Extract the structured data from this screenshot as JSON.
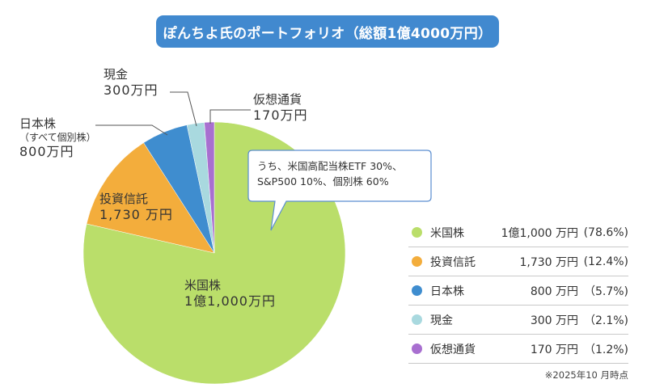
{
  "title": "ぽんちよ氏のポートフォリオ（総額1億4000万円）",
  "chart_data": {
    "type": "pie",
    "title": "ぽんちよ氏のポートフォリオ（総額1億4000万円）",
    "unit": "万円",
    "start_angle": "top",
    "direction": "clockwise",
    "slices": [
      {
        "name": "米国株",
        "value": 11000,
        "value_label": "1億1,000万円",
        "percent": 78.6,
        "color": "#bade6a"
      },
      {
        "name": "投資信託",
        "value": 1730,
        "value_label": "1,730万円",
        "percent": 12.4,
        "color": "#f3ad3c"
      },
      {
        "name": "日本株",
        "value": 800,
        "value_label": "800万円",
        "percent": 5.7,
        "color": "#3f8dcf"
      },
      {
        "name": "現金",
        "value": 300,
        "value_label": "300万円",
        "percent": 2.1,
        "color": "#a9d9df"
      },
      {
        "name": "仮想通貨",
        "value": 170,
        "value_label": "170万円",
        "percent": 1.2,
        "color": "#a86fd0"
      }
    ]
  },
  "labels": {
    "us": {
      "name": "米国株",
      "amount": "1億1,000万円"
    },
    "fund": {
      "name": "投資信託",
      "amount": "1,730 万円"
    },
    "jp": {
      "name": "日本株",
      "sub": "（すべて個別株）",
      "amount": "800万円"
    },
    "cash": {
      "name": "現金",
      "amount": "300万円"
    },
    "crypto": {
      "name": "仮想通貨",
      "amount": "170万円"
    }
  },
  "callout": {
    "line1": "うち、米国高配当株ETF 30%、",
    "line2": "S&P500 10%、個別株 60%"
  },
  "legend": [
    {
      "name": "米国株",
      "value": "1億1,000 万円",
      "percent": "(78.6%)",
      "color": "#bade6a"
    },
    {
      "name": "投資信託",
      "value": "1,730 万円",
      "percent": "(12.4%)",
      "color": "#f3ad3c"
    },
    {
      "name": "日本株",
      "value": "800 万円",
      "percent": "（5.7%)",
      "color": "#3f8dcf"
    },
    {
      "name": "現金",
      "value": "300 万円",
      "percent": "（2.1%)",
      "color": "#a9d9df"
    },
    {
      "name": "仮想通貨",
      "value": "170 万円",
      "percent": "（1.2%)",
      "color": "#a86fd0"
    }
  ],
  "note": "※2025年10 月時点"
}
